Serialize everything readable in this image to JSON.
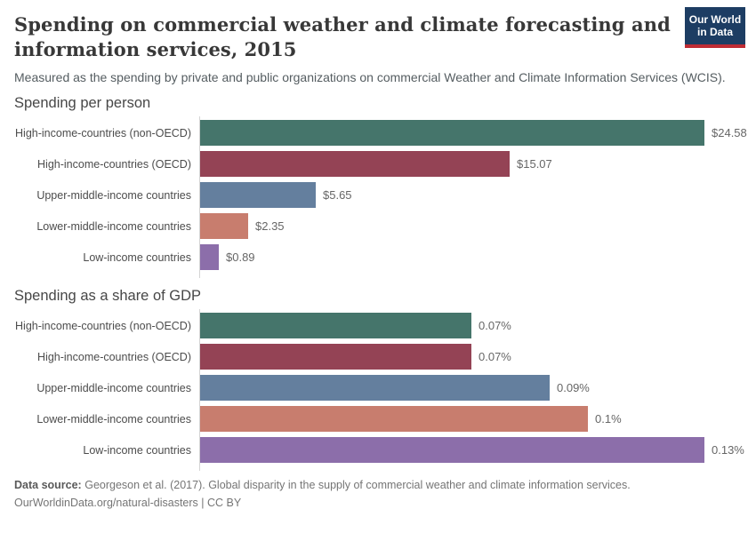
{
  "header": {
    "title": "Spending on commercial weather and climate forecasting and information services, 2015",
    "subtitle": "Measured as the spending by private and public organizations on commercial Weather and Climate Information Services (WCIS).",
    "logo": {
      "line1": "Our World",
      "line2": "in Data",
      "bg_color": "#1d3d63",
      "accent_color": "#bf2c34"
    }
  },
  "chart_data": [
    {
      "type": "bar",
      "orientation": "horizontal",
      "title": "Spending per person",
      "categories": [
        "High-income-countries (non-OECD)",
        "High-income-countries (OECD)",
        "Upper-middle-income countries",
        "Lower-middle-income countries",
        "Low-income countries"
      ],
      "values": [
        24.58,
        15.07,
        5.65,
        2.35,
        0.89
      ],
      "value_labels": [
        "$24.58",
        "$15.07",
        "$5.65",
        "$2.35",
        "$0.89"
      ],
      "xlim": [
        0,
        24.58
      ],
      "bar_colors": [
        "#45756b",
        "#944355",
        "#647f9e",
        "#c87d6e",
        "#8c6eaa"
      ],
      "grid": false,
      "legend_position": "none"
    },
    {
      "type": "bar",
      "orientation": "horizontal",
      "title": "Spending as a share of GDP",
      "categories": [
        "High-income-countries (non-OECD)",
        "High-income-countries (OECD)",
        "Upper-middle-income countries",
        "Lower-middle-income countries",
        "Low-income countries"
      ],
      "values": [
        0.07,
        0.07,
        0.09,
        0.1,
        0.13
      ],
      "value_labels": [
        "0.07%",
        "0.07%",
        "0.09%",
        "0.1%",
        "0.13%"
      ],
      "xlim": [
        0,
        0.13
      ],
      "bar_colors": [
        "#45756b",
        "#944355",
        "#647f9e",
        "#c87d6e",
        "#8c6eaa"
      ],
      "grid": false,
      "legend_position": "none"
    }
  ],
  "footer": {
    "source_label": "Data source:",
    "source_text": "Georgeson et al. (2017). Global disparity in the supply of commercial weather and climate information services.",
    "link_text": "OurWorldinData.org/natural-disasters",
    "separator": "|",
    "license": "CC BY"
  }
}
